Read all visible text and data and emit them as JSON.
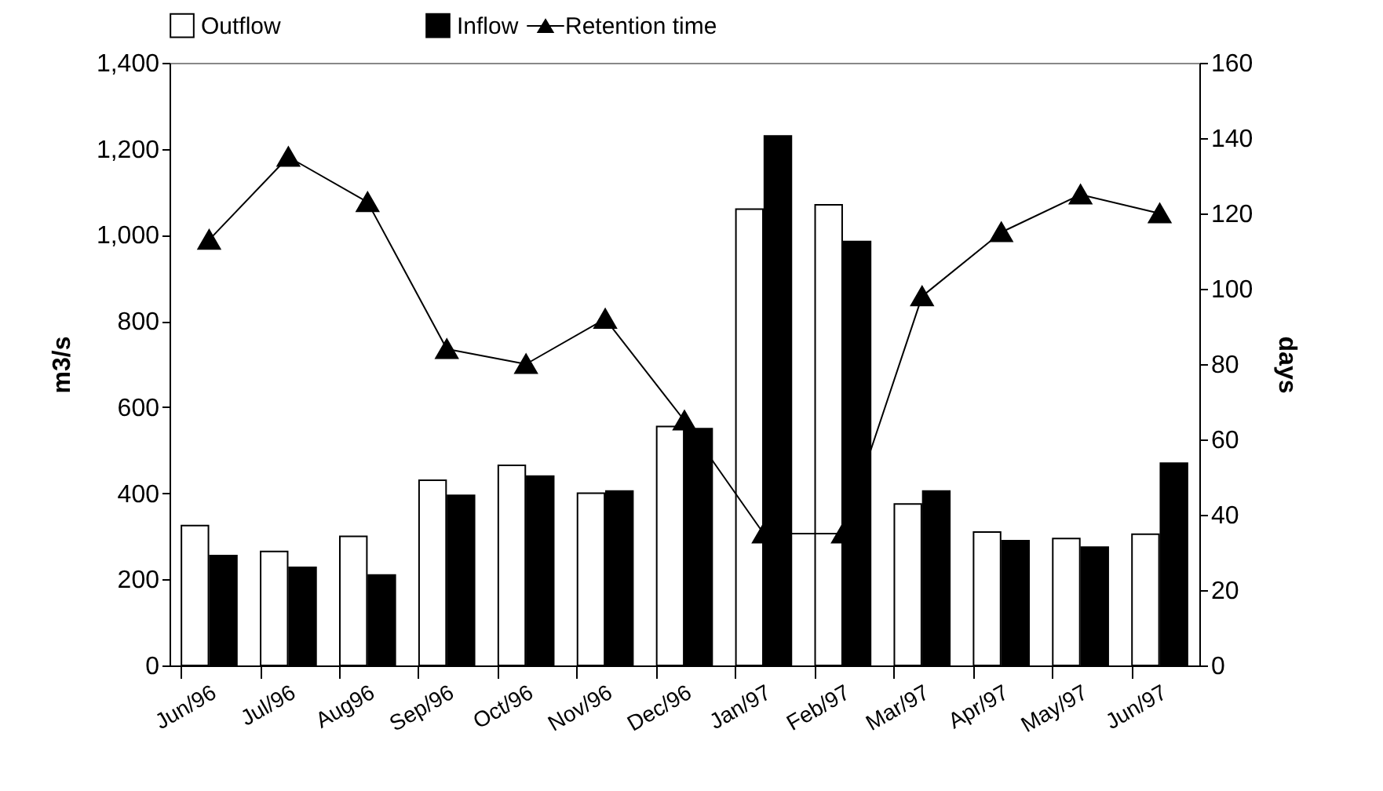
{
  "chart_data": {
    "type": "bar",
    "xlabel": null,
    "ylabel": "m3/s",
    "y2label": "days",
    "categories": [
      "Jun/96",
      "Jul/96",
      "Aug96",
      "Sep/96",
      "Oct/96",
      "Nov/96",
      "Dec/96",
      "Jan/97",
      "Feb/97",
      "Mar/97",
      "Apr/97",
      "May/97",
      "Jun/97"
    ],
    "series": [
      {
        "name": "Outflow",
        "color": "#ffffff",
        "values": [
          325,
          265,
          300,
          430,
          465,
          400,
          555,
          1060,
          1070,
          375,
          310,
          295,
          305
        ]
      },
      {
        "name": "Inflow",
        "color": "#000000",
        "values": [
          255,
          228,
          210,
          395,
          440,
          405,
          550,
          1230,
          985,
          405,
          290,
          275,
          470
        ]
      },
      {
        "name": "Retention time",
        "type": "line",
        "axis": "y2",
        "color": "#000000",
        "marker": "triangle",
        "values": [
          113,
          135,
          123,
          84,
          80,
          92,
          65,
          35,
          35,
          98,
          115,
          125,
          120
        ]
      }
    ],
    "ylim": [
      0,
      1400
    ],
    "yticks": [
      0,
      200,
      400,
      600,
      800,
      {
        "value": 1000,
        "label": "1,000"
      },
      {
        "value": 1200,
        "label": "1,200"
      },
      {
        "value": 1400,
        "label": "1,400"
      }
    ],
    "y2lim": [
      0,
      160
    ],
    "y2ticks": [
      0,
      20,
      40,
      60,
      80,
      100,
      120,
      140,
      160
    ],
    "grid": false,
    "legend": "top"
  }
}
